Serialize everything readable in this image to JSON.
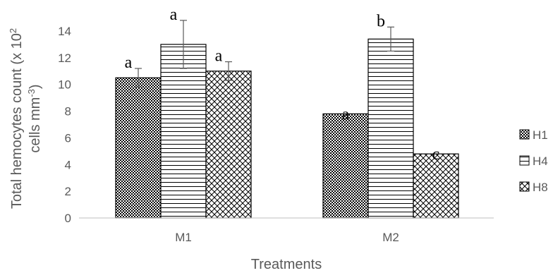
{
  "chart_data": {
    "type": "bar",
    "xlabel": "Treatments",
    "ylabel_line1": "Total hemocytes count (x 10",
    "ylabel_line1_sup": "2",
    "ylabel_line2": "cells mm",
    "ylabel_line2_sup": "-3",
    "ylabel_line2_end": ")",
    "ylim": [
      0,
      14
    ],
    "yticks": [
      0,
      2,
      4,
      6,
      8,
      10,
      12,
      14
    ],
    "categories": [
      "M1",
      "M2"
    ],
    "series": [
      {
        "name": "H1",
        "pattern": "dots",
        "values": [
          10.5,
          7.8
        ],
        "errors": [
          0.7,
          0.0
        ],
        "labels": [
          "a",
          "a"
        ]
      },
      {
        "name": "H4",
        "pattern": "hlines",
        "values": [
          13.0,
          13.4
        ],
        "errors": [
          1.8,
          0.9
        ],
        "labels": [
          "a",
          "b"
        ]
      },
      {
        "name": "H8",
        "pattern": "diag",
        "values": [
          11.0,
          4.8
        ],
        "errors": [
          0.7,
          0.0
        ],
        "labels": [
          "a",
          "c"
        ]
      }
    ],
    "grid": false,
    "legend_position": "right",
    "colors": {
      "bar_edge": "#000000",
      "text": "#595959",
      "axis": "#bfbfbf"
    }
  }
}
